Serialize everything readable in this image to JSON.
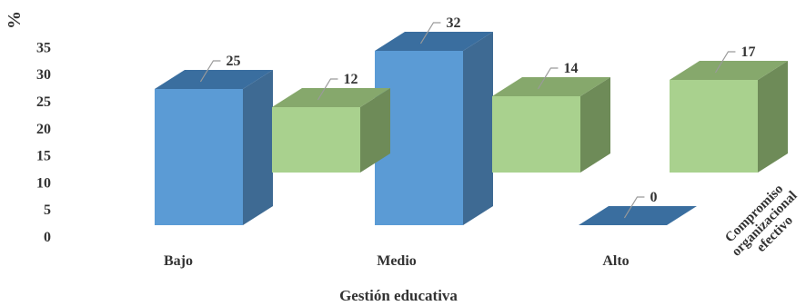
{
  "chart_data": {
    "type": "bar",
    "style": "3d-clustered-column",
    "categories": [
      "Bajo",
      "Medio",
      "Alto"
    ],
    "series": [
      {
        "name": "",
        "color": "#5B9BD5",
        "side_color": "#3E6A93",
        "top_color": "#3A6E9F",
        "values": [
          25,
          32,
          0
        ]
      },
      {
        "name": "Compromiso organizacional efectivo",
        "color": "#A9D18E",
        "side_color": "#6E8B58",
        "top_color": "#86A86C",
        "values": [
          12,
          14,
          17
        ]
      }
    ],
    "ylabel": "%",
    "xlabel": "Gestión educativa",
    "ylim": [
      0,
      35
    ],
    "yticks": [
      0,
      5,
      10,
      15,
      20,
      25,
      30,
      35
    ],
    "grid": false,
    "legend": "right"
  }
}
